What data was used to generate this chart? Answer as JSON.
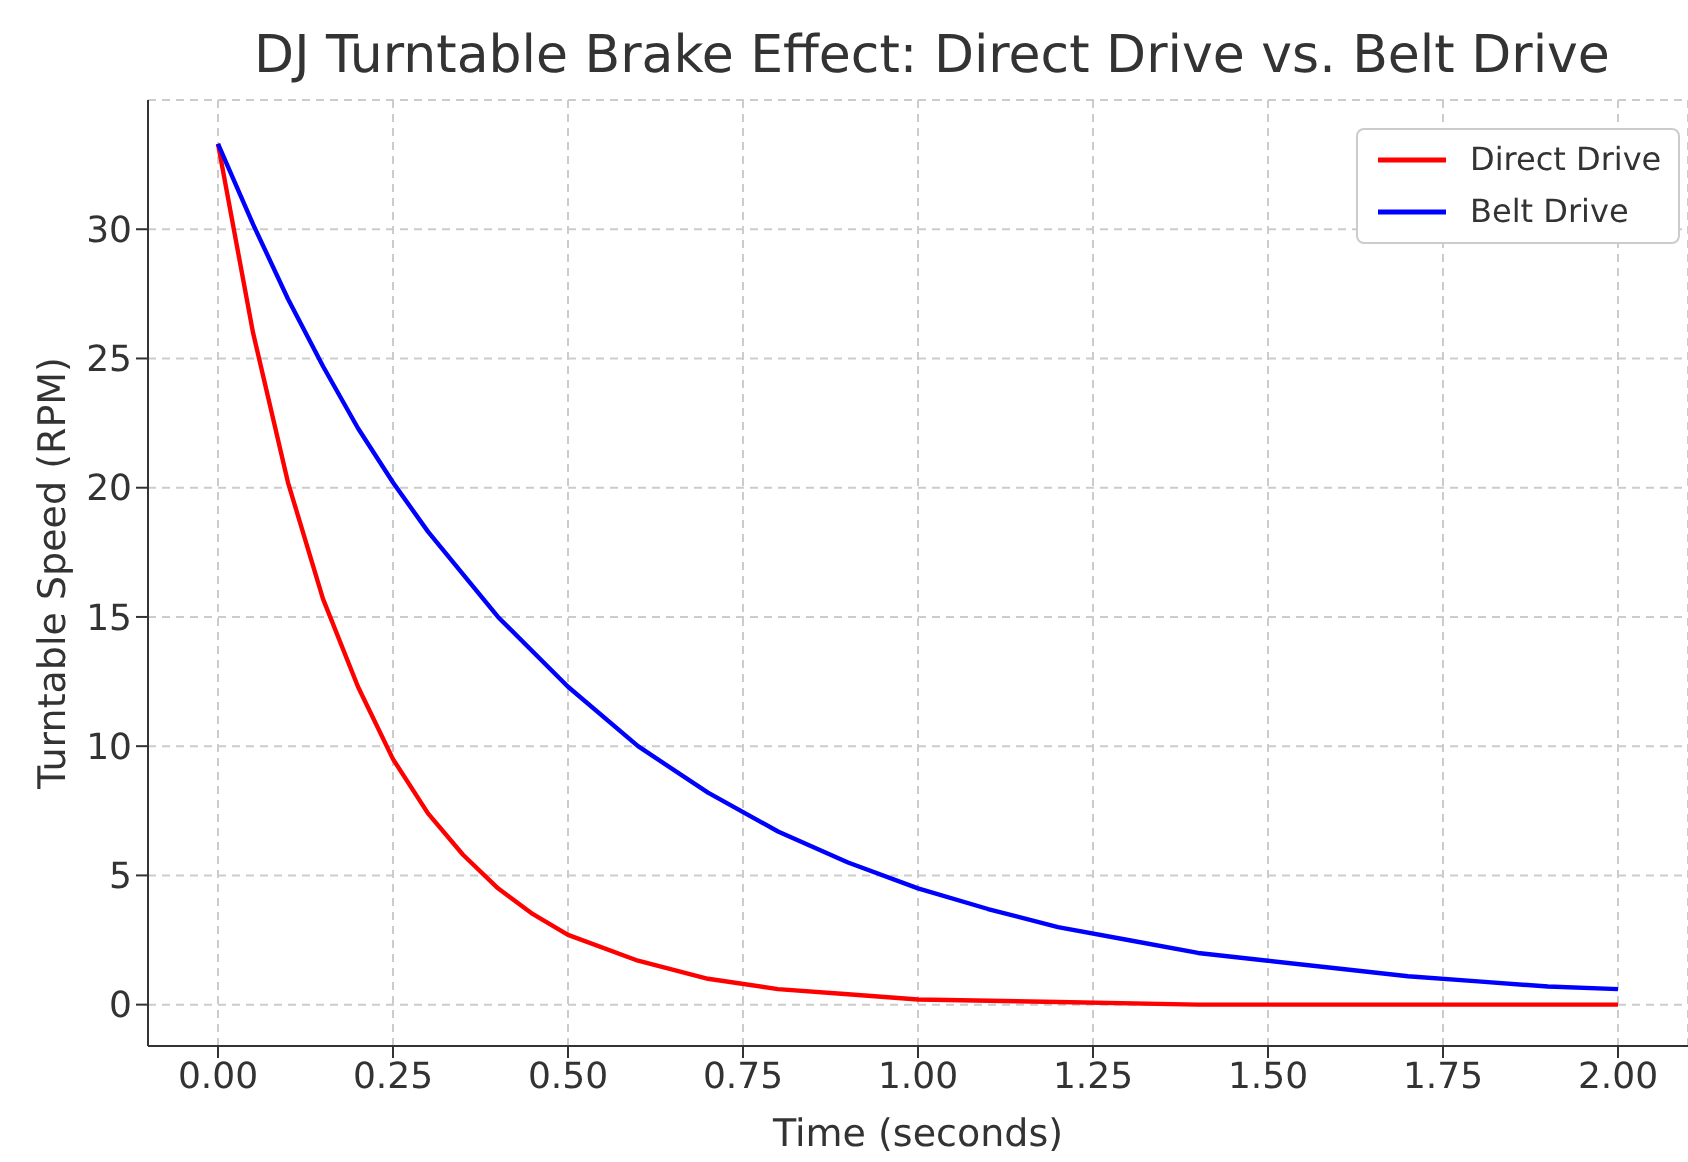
{
  "chart_data": {
    "type": "line",
    "title": "DJ Turntable Brake Effect: Direct Drive vs. Belt Drive",
    "xlabel": "Time (seconds)",
    "ylabel": "Turntable Speed (RPM)",
    "series": [
      {
        "name": "Direct Drive",
        "color": "#ff0000",
        "x": [
          0,
          0.05,
          0.1,
          0.15,
          0.2,
          0.25,
          0.3,
          0.35,
          0.4,
          0.45,
          0.5,
          0.6,
          0.7,
          0.8,
          0.9,
          1.0,
          1.2,
          1.4,
          1.6,
          1.8,
          2.0
        ],
        "values": [
          33.3,
          26.0,
          20.2,
          15.7,
          12.3,
          9.5,
          7.4,
          5.8,
          4.5,
          3.5,
          2.7,
          1.7,
          1.0,
          0.6,
          0.4,
          0.2,
          0.1,
          0.0,
          0.0,
          0.0,
          0.0
        ]
      },
      {
        "name": "Belt Drive",
        "color": "#0000ff",
        "x": [
          0,
          0.05,
          0.1,
          0.15,
          0.2,
          0.25,
          0.3,
          0.4,
          0.5,
          0.6,
          0.7,
          0.8,
          0.9,
          1.0,
          1.1,
          1.2,
          1.3,
          1.4,
          1.5,
          1.6,
          1.7,
          1.8,
          1.9,
          2.0
        ],
        "values": [
          33.3,
          30.2,
          27.3,
          24.7,
          22.3,
          20.2,
          18.3,
          15.0,
          12.3,
          10.0,
          8.2,
          6.7,
          5.5,
          4.5,
          3.7,
          3.0,
          2.5,
          2.0,
          1.7,
          1.4,
          1.1,
          0.9,
          0.7,
          0.6
        ]
      }
    ],
    "xlim": [
      -0.1,
      2.1
    ],
    "xticks": [
      {
        "value": 0,
        "label": "0.00"
      },
      {
        "value": 0.25,
        "label": "0.25"
      },
      {
        "value": 0.5,
        "label": "0.50"
      },
      {
        "value": 0.75,
        "label": "0.75"
      },
      {
        "value": 1,
        "label": "1.00"
      },
      {
        "value": 1.25,
        "label": "1.25"
      },
      {
        "value": 1.5,
        "label": "1.50"
      },
      {
        "value": 1.75,
        "label": "1.75"
      },
      {
        "value": 2,
        "label": "2.00"
      }
    ],
    "ylim": [
      -1.6,
      35
    ],
    "yticks": [
      0,
      5,
      10,
      15,
      20,
      25,
      30
    ],
    "grid": true,
    "legend": "top right",
    "line_style": "solid",
    "marker": "none"
  }
}
